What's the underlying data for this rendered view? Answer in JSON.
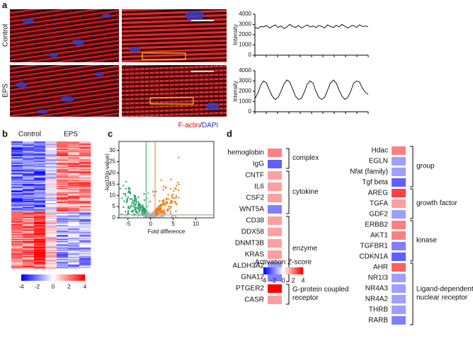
{
  "panels": {
    "a": {
      "label": "a",
      "rows": [
        "Control",
        "EPS"
      ],
      "stain": {
        "red": "F-actin",
        "sep": "/",
        "blue": "DAPI"
      },
      "profiles": [
        {
          "ylabel": "Intensity",
          "ylim": [
            0,
            4000
          ],
          "yticks": [
            0,
            1000,
            2000,
            3000,
            4000
          ],
          "values": [
            2700,
            2600,
            2800,
            2750,
            2900,
            2650,
            2800,
            2950,
            2700,
            2850,
            2600,
            2750,
            3000,
            2800,
            2700,
            2900,
            2650,
            2800,
            2950,
            2750,
            2850,
            2700,
            2900,
            2800,
            2650,
            2950,
            2800,
            2700,
            2900,
            2750,
            3000,
            2800,
            2650,
            2850,
            2900,
            2700,
            2950,
            2800,
            2850,
            2750
          ]
        },
        {
          "ylabel": "Intensity",
          "ylim": [
            0,
            4000
          ],
          "yticks": [
            0,
            1000,
            2000,
            3000,
            4000
          ],
          "values": [
            1300,
            1800,
            2600,
            3000,
            2800,
            2100,
            1500,
            1200,
            1400,
            2000,
            2700,
            3100,
            2900,
            2200,
            1500,
            1200,
            1300,
            1900,
            2700,
            3000,
            2800,
            2000,
            1400,
            1200,
            1400,
            2100,
            2800,
            3100,
            2800,
            2100,
            1500,
            1200,
            1400,
            2000,
            2800,
            3000,
            2900,
            2300,
            1900,
            1700
          ]
        }
      ]
    },
    "b": {
      "label": "b",
      "groups": [
        "Control",
        "EPS"
      ],
      "colorbar_ticks": [
        -4,
        -2,
        0,
        2,
        4
      ]
    },
    "c": {
      "label": "c",
      "ylabel": "-log10(p-value)",
      "xlabel": "Fold difference",
      "xlim": [
        -7,
        14
      ],
      "ylim": [
        0,
        34
      ],
      "xticks": [
        -5,
        0,
        5,
        10
      ],
      "yticks": [
        0,
        5,
        10,
        15,
        20,
        25,
        30
      ],
      "thresholds": {
        "fold": [
          -1,
          1
        ],
        "p": 1.3
      }
    },
    "d": {
      "label": "d",
      "legend_title": "Activation Z-score",
      "legend_ticks": [
        -4,
        -2,
        0,
        2,
        4
      ],
      "columns": [
        [
          {
            "label": [
              "complex"
            ],
            "genes": [
              {
                "name": "hemoglobin",
                "z": 2
              },
              {
                "name": "IgG",
                "z": -2.5
              }
            ]
          },
          {
            "label": [
              "cytokine"
            ],
            "genes": [
              {
                "name": "CNTF",
                "z": 1.5
              },
              {
                "name": "IL6",
                "z": 1.5
              },
              {
                "name": "CSF2",
                "z": 1.5
              },
              {
                "name": "WNT5A",
                "z": -2,
                "highlight": true
              }
            ]
          },
          {
            "label": [
              "enzyme"
            ],
            "genes": [
              {
                "name": "CD38",
                "z": 1.5
              },
              {
                "name": "DDX58",
                "z": 1.5
              },
              {
                "name": "DNMT3B",
                "z": 1.5
              },
              {
                "name": "KRAS",
                "z": 1.5
              },
              {
                "name": "ALDH3A2",
                "z": -1.5
              },
              {
                "name": "GNA12",
                "z": -2
              }
            ]
          },
          {
            "label": [
              "G-protein coupled",
              "receptor"
            ],
            "genes": [
              {
                "name": "PTGER2",
                "z": 4
              },
              {
                "name": "CASR",
                "z": 1.5
              }
            ]
          }
        ],
        [
          {
            "label": [
              "group"
            ],
            "genes": [
              {
                "name": "Hdac",
                "z": 2
              },
              {
                "name": "EGLN",
                "z": -1.5
              },
              {
                "name": "Nfat (family)",
                "z": -1.5
              },
              {
                "name": "Tgf beta",
                "z": -2.5
              }
            ]
          },
          {
            "label": [
              "growth factor"
            ],
            "genes": [
              {
                "name": "AREG",
                "z": 3,
                "highlight": true
              },
              {
                "name": "TGFA",
                "z": 1.5
              },
              {
                "name": "GDF2",
                "z": -1.5
              }
            ]
          },
          {
            "label": [
              "kinase"
            ],
            "genes": [
              {
                "name": "ERBB2",
                "z": 2
              },
              {
                "name": "AKT1",
                "z": 2
              },
              {
                "name": "TGFBR1",
                "z": -2
              },
              {
                "name": "CDKN1A",
                "z": -2.5
              }
            ]
          },
          {
            "label": [
              "Ligand-dependent",
              "nuclear receptor"
            ],
            "genes": [
              {
                "name": "AHR",
                "z": 2.5
              },
              {
                "name": "NR1I3",
                "z": -1.5
              },
              {
                "name": "NR4A3",
                "z": -1.5
              },
              {
                "name": "NR4A2",
                "z": -1.5
              },
              {
                "name": "THRB",
                "z": -1.5
              },
              {
                "name": "RARB",
                "z": -2
              }
            ]
          }
        ]
      ]
    }
  }
}
